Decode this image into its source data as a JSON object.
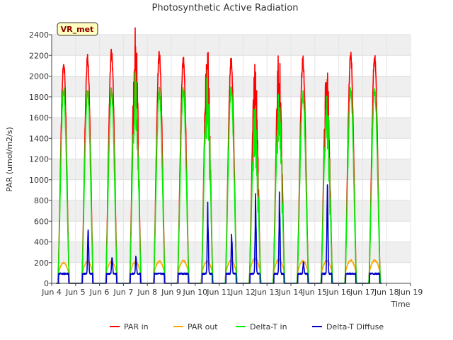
{
  "chart_data": {
    "type": "line",
    "title": "Photosynthetic Active Radiation",
    "xlabel": "Time",
    "ylabel": "PAR (umol/m2/s)",
    "station_badge": "VR_met",
    "x_ticks": [
      "Jun 4",
      "Jun 5",
      "Jun 6",
      "Jun 7",
      "Jun 8",
      "Jun 9",
      "Jun 10",
      "Jun 11",
      "Jun 12",
      "Jun 13",
      "Jun 14",
      "Jun 15",
      "Jun 16",
      "Jun 17",
      "Jun 18",
      "Jun 19"
    ],
    "x_range_days": [
      "Jun 4",
      "Jun 19"
    ],
    "y_ticks": [
      0,
      200,
      400,
      600,
      800,
      1000,
      1200,
      1400,
      1600,
      1800,
      2000,
      2200,
      2400
    ],
    "ylim": [
      0,
      2400
    ],
    "grid": true,
    "legend_position": "bottom-center",
    "sampling": "daily peak values, approximate",
    "days": [
      "Jun 4",
      "Jun 5",
      "Jun 6",
      "Jun 7",
      "Jun 8",
      "Jun 9",
      "Jun 10",
      "Jun 11",
      "Jun 12",
      "Jun 13",
      "Jun 14",
      "Jun 15",
      "Jun 16",
      "Jun 17"
    ],
    "series": [
      {
        "name": "PAR in",
        "color": "#ff0000",
        "daily_peaks": [
          2130,
          2170,
          2230,
          2390,
          2220,
          2170,
          2260,
          2150,
          2080,
          2200,
          2160,
          2090,
          2210,
          2190
        ]
      },
      {
        "name": "PAR out",
        "color": "#ffa500",
        "daily_peaks": [
          200,
          210,
          210,
          210,
          215,
          220,
          215,
          220,
          240,
          230,
          220,
          220,
          225,
          225
        ]
      },
      {
        "name": "Delta-T in",
        "color": "#00ee00",
        "daily_peaks": [
          1870,
          1850,
          1860,
          1960,
          1860,
          1870,
          2000,
          1870,
          1660,
          1830,
          1830,
          1780,
          1870,
          1880
        ]
      },
      {
        "name": "Delta-T Diffuse",
        "color": "#0000cc",
        "daily_peaks": [
          100,
          610,
          280,
          290,
          90,
          80,
          800,
          530,
          930,
          960,
          220,
          1060,
          95,
          100
        ]
      }
    ]
  }
}
